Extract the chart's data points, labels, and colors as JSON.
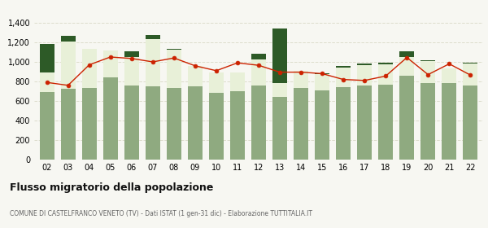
{
  "years": [
    "02",
    "03",
    "04",
    "05",
    "06",
    "07",
    "08",
    "09",
    "10",
    "11",
    "12",
    "13",
    "14",
    "15",
    "16",
    "17",
    "18",
    "19",
    "20",
    "21",
    "22"
  ],
  "iscritti_altri_comuni": [
    690,
    725,
    730,
    845,
    755,
    750,
    735,
    750,
    685,
    700,
    755,
    645,
    730,
    710,
    745,
    755,
    770,
    855,
    785,
    785,
    760
  ],
  "iscritti_estero": [
    200,
    480,
    400,
    270,
    295,
    480,
    390,
    205,
    210,
    190,
    270,
    140,
    175,
    165,
    200,
    215,
    205,
    195,
    220,
    145,
    220
  ],
  "iscritti_altri": [
    290,
    60,
    0,
    0,
    55,
    45,
    10,
    0,
    0,
    0,
    55,
    560,
    0,
    5,
    10,
    10,
    15,
    60,
    10,
    0,
    10
  ],
  "cancellati": [
    790,
    760,
    970,
    1050,
    1035,
    1000,
    1040,
    960,
    910,
    990,
    965,
    895,
    895,
    880,
    820,
    810,
    855,
    1045,
    870,
    980,
    865
  ],
  "color_altri_comuni": "#8faa80",
  "color_estero": "#e8f0d8",
  "color_altri": "#2d5a27",
  "color_cancellati": "#cc2200",
  "bg_color": "#f7f7f2",
  "grid_color": "#ddddcc",
  "title": "Flusso migratorio della popolazione",
  "subtitle": "COMUNE DI CASTELFRANCO VENETO (TV) - Dati ISTAT (1 gen-31 dic) - Elaborazione TUTTITALIA.IT",
  "ylim": [
    0,
    1400
  ],
  "yticks": [
    0,
    200,
    400,
    600,
    800,
    1000,
    1200,
    1400
  ]
}
